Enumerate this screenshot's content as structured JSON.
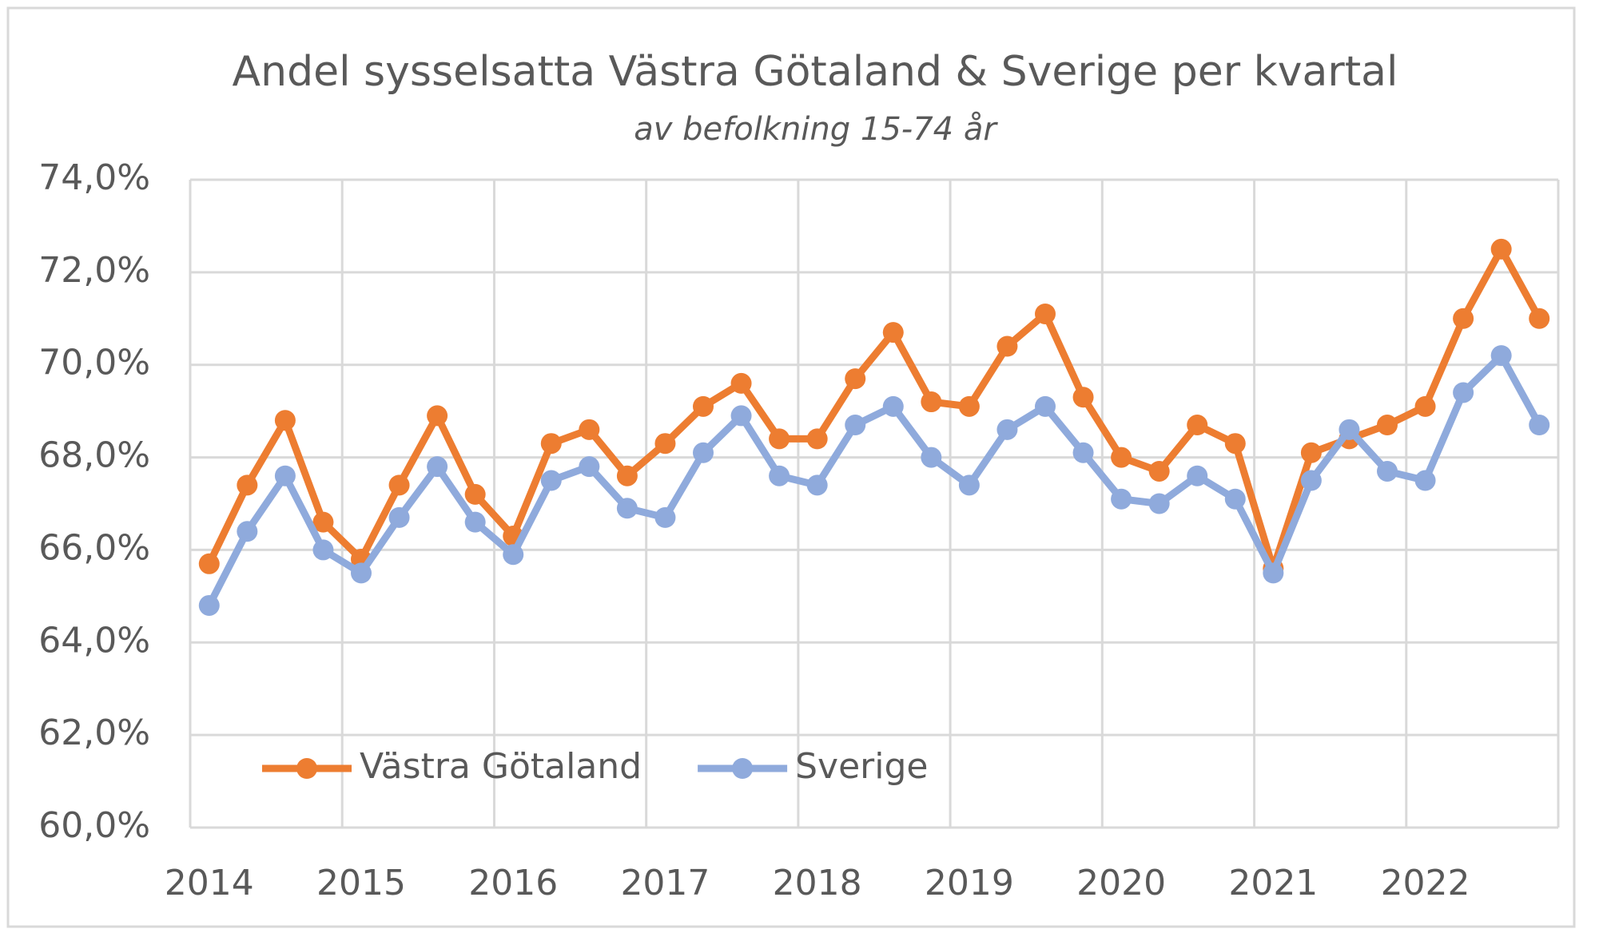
{
  "chart_data": {
    "type": "line",
    "title": "Andel sysselsatta Västra Götaland & Sverige per kvartal",
    "subtitle": "av befolkning 15-74 år",
    "categories": [
      "2014",
      null,
      null,
      null,
      "2015",
      null,
      null,
      null,
      "2016",
      null,
      null,
      null,
      "2017",
      null,
      null,
      null,
      "2018",
      null,
      null,
      null,
      "2019",
      null,
      null,
      null,
      "2020",
      null,
      null,
      null,
      "2021",
      null,
      null,
      null,
      "2022",
      null,
      null,
      null
    ],
    "series": [
      {
        "name": "Västra Götaland",
        "color": "#ed7d31",
        "values": [
          65.7,
          67.4,
          68.8,
          66.6,
          65.8,
          67.4,
          68.9,
          67.2,
          66.3,
          68.3,
          68.6,
          67.6,
          68.3,
          69.1,
          69.6,
          68.4,
          68.4,
          69.7,
          70.7,
          69.2,
          69.1,
          70.4,
          71.1,
          69.3,
          68.0,
          67.7,
          68.7,
          68.3,
          65.6,
          68.1,
          68.4,
          68.7,
          69.1,
          71.0,
          72.5,
          71.0
        ]
      },
      {
        "name": "Sverige",
        "color": "#8faadc",
        "values": [
          64.8,
          66.4,
          67.6,
          66.0,
          65.5,
          66.7,
          67.8,
          66.6,
          65.9,
          67.5,
          67.8,
          66.9,
          66.7,
          68.1,
          68.9,
          67.6,
          67.4,
          68.7,
          69.1,
          68.0,
          67.4,
          68.6,
          69.1,
          68.1,
          67.1,
          67.0,
          67.6,
          67.1,
          65.5,
          67.5,
          68.6,
          67.7,
          67.5,
          69.4,
          70.2,
          68.7
        ]
      }
    ],
    "ylim": [
      60,
      74
    ],
    "yticks": [
      {
        "value": 60,
        "label": "60,0%"
      },
      {
        "value": 62,
        "label": "62,0%"
      },
      {
        "value": 64,
        "label": "64,0%"
      },
      {
        "value": 66,
        "label": "66,0%"
      },
      {
        "value": 68,
        "label": "68,0%"
      },
      {
        "value": 70,
        "label": "70,0%"
      },
      {
        "value": 72,
        "label": "72,0%"
      },
      {
        "value": 74,
        "label": "74,0%"
      }
    ],
    "grid": true,
    "legend": "lower left"
  }
}
